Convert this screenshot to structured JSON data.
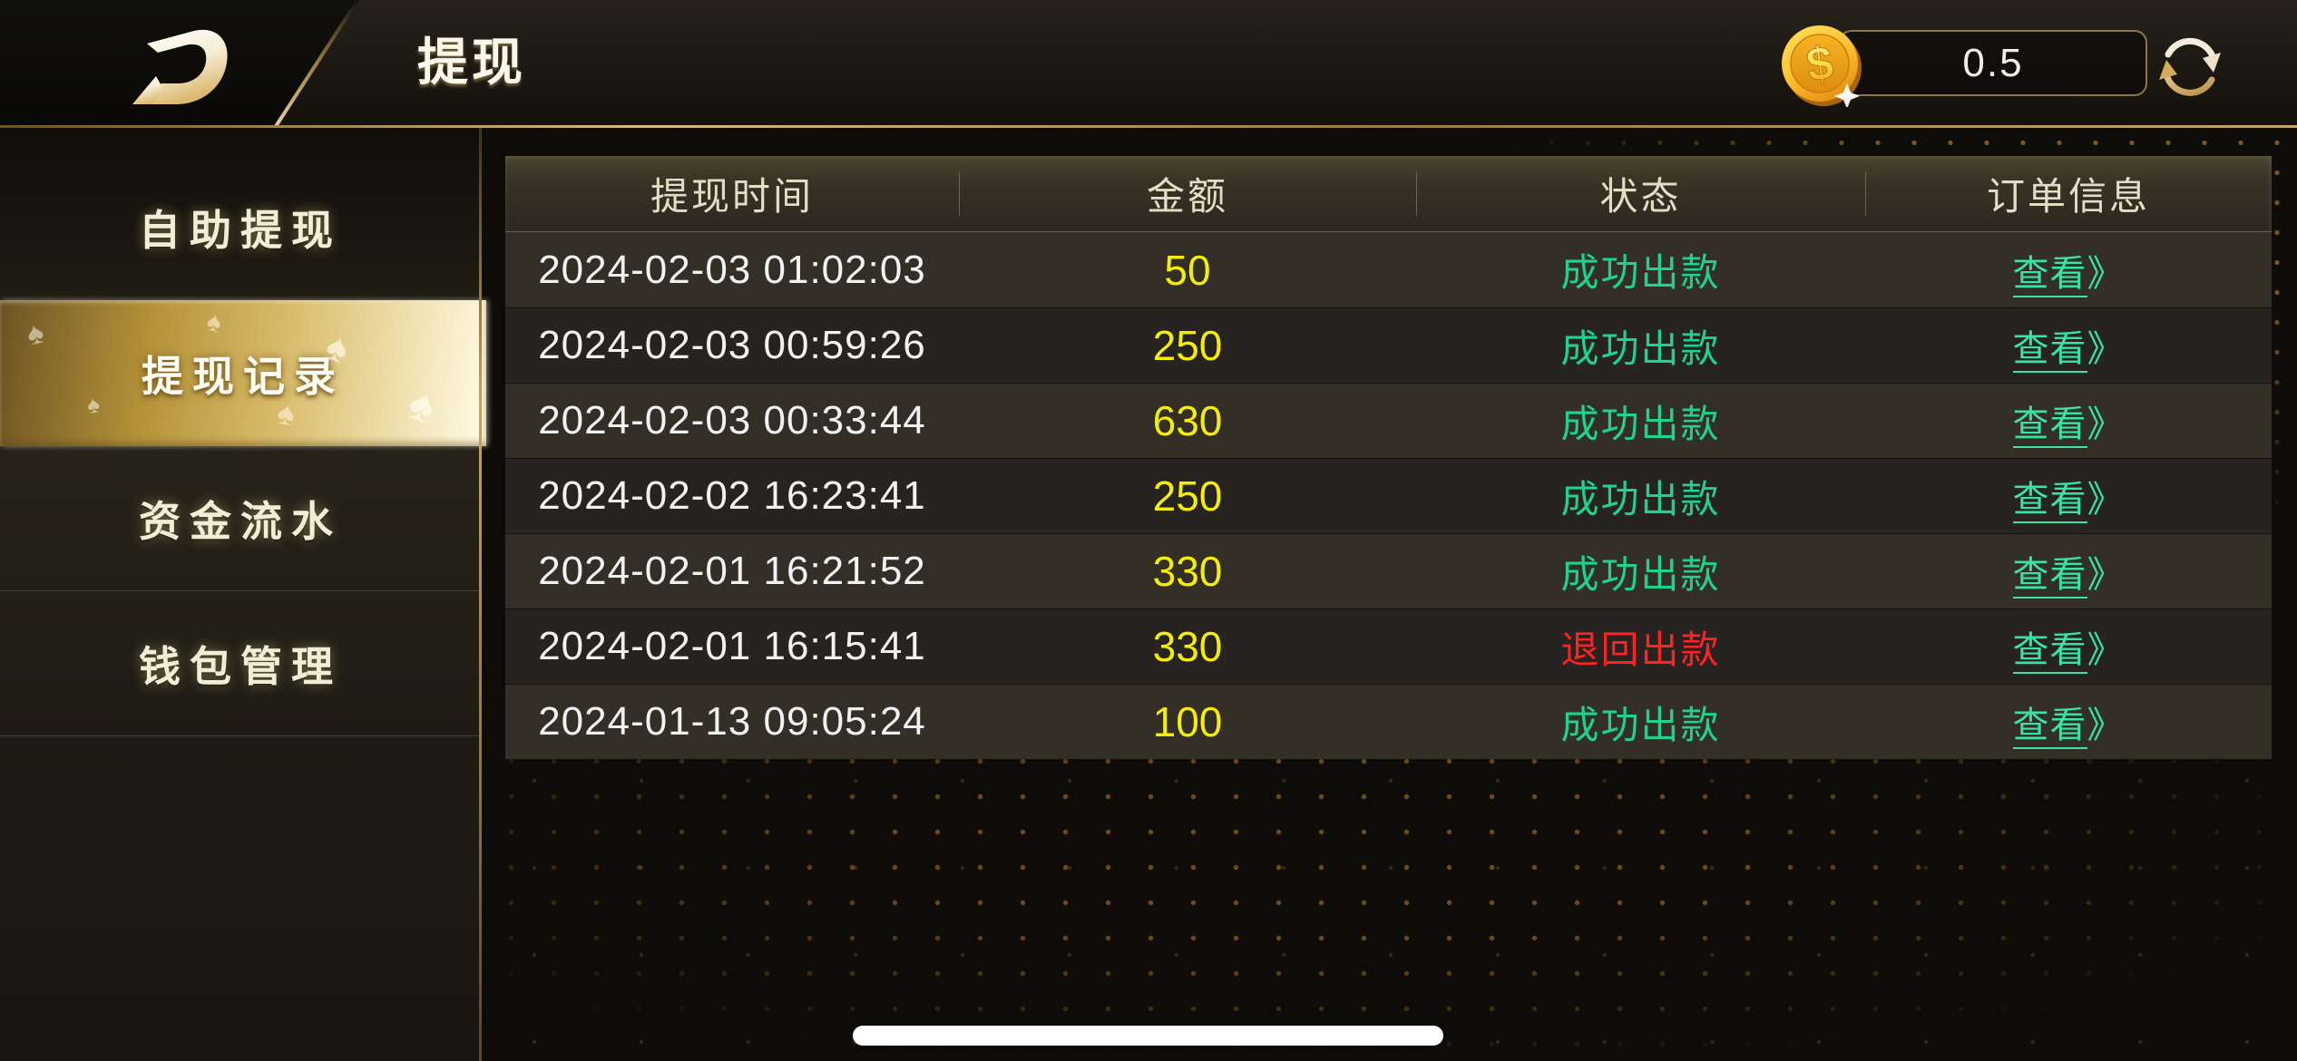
{
  "topbar": {
    "title": "提现",
    "balance": {
      "value": "0.5",
      "coin_symbol": "$"
    },
    "icons": {
      "logo": "brand-d-logo",
      "coin": "gold-dollar-coin-icon",
      "refresh": "refresh-arrows-icon"
    }
  },
  "sidebar": {
    "items": [
      {
        "label": "自助提现",
        "selected": false
      },
      {
        "label": "提现记录",
        "selected": true
      },
      {
        "label": "资金流水",
        "selected": false
      },
      {
        "label": "钱包管理",
        "selected": false
      }
    ]
  },
  "table": {
    "columns": [
      "提现时间",
      "金额",
      "状态",
      "订单信息"
    ],
    "view_link": {
      "label": "查看",
      "arrow": "》"
    },
    "rows": [
      {
        "time": "2024-02-03 01:02:03",
        "amount": "50",
        "status": "成功出款",
        "status_type": "success"
      },
      {
        "time": "2024-02-03 00:59:26",
        "amount": "250",
        "status": "成功出款",
        "status_type": "success"
      },
      {
        "time": "2024-02-03 00:33:44",
        "amount": "630",
        "status": "成功出款",
        "status_type": "success"
      },
      {
        "time": "2024-02-02 16:23:41",
        "amount": "250",
        "status": "成功出款",
        "status_type": "success"
      },
      {
        "time": "2024-02-01 16:21:52",
        "amount": "330",
        "status": "成功出款",
        "status_type": "success"
      },
      {
        "time": "2024-02-01 16:15:41",
        "amount": "330",
        "status": "退回出款",
        "status_type": "refund"
      },
      {
        "time": "2024-01-13 09:05:24",
        "amount": "100",
        "status": "成功出款",
        "status_type": "success"
      }
    ]
  },
  "colors": {
    "amount_yellow": "#f3ee04",
    "status_success_green": "#1ed48a",
    "status_refund_red": "#ff2222",
    "link_green": "#38e4a4",
    "gold_accent": "#d7b66a"
  }
}
